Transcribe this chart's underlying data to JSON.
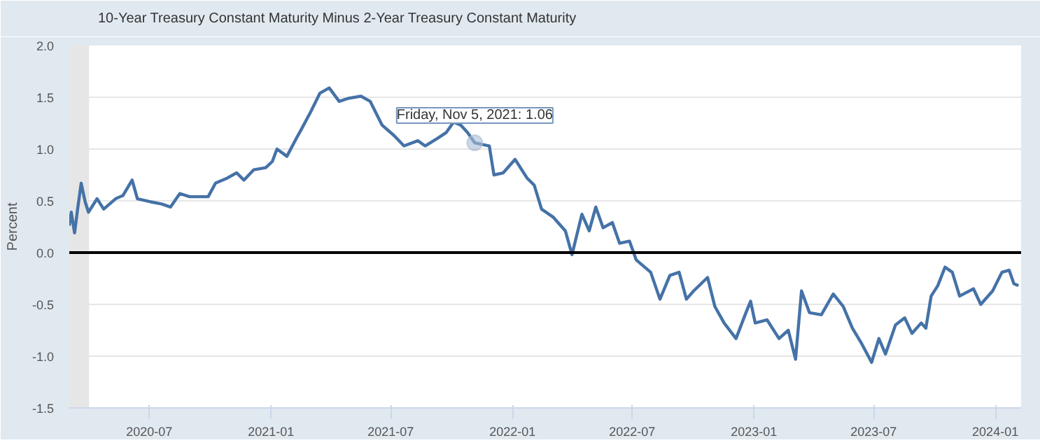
{
  "chart_data": {
    "type": "line",
    "ylabel": "Percent",
    "legend": "top left",
    "grid": "y",
    "line_style": "solid",
    "marker": "none",
    "xlim": [
      "2020-03-02",
      "2024-02-09"
    ],
    "ylim": [
      -1.5,
      2.0
    ],
    "xticks": [
      "2020-07",
      "2021-01",
      "2021-07",
      "2022-01",
      "2022-07",
      "2023-01",
      "2023-07",
      "2024-01"
    ],
    "yticks": [
      {
        "value": -1.5,
        "label": "-1.5"
      },
      {
        "value": -1.0,
        "label": "-1.0"
      },
      {
        "value": -0.5,
        "label": "-0.5"
      },
      {
        "value": 0.0,
        "label": "0.0"
      },
      {
        "value": 0.5,
        "label": "0.5"
      },
      {
        "value": 1.0,
        "label": "1.0"
      },
      {
        "value": 1.5,
        "label": "1.5"
      },
      {
        "value": 2.0,
        "label": "2.0"
      }
    ],
    "ref_lines": [
      {
        "axis": "y",
        "value": 0,
        "color": "#000000"
      }
    ],
    "bands": [
      {
        "axis": "x",
        "from": "2020-03-02",
        "to": "2020-04-01",
        "color": "#e6e6e6"
      }
    ],
    "annotations": [
      {
        "text": "Friday, Nov 5, 2021: 1.06",
        "x": "2021-11-05",
        "y": 1.06
      }
    ],
    "x": [
      "2020-03-02",
      "2020-03-05",
      "2020-03-10",
      "2020-03-15",
      "2020-03-20",
      "2020-03-26",
      "2020-03-31",
      "2020-04-13",
      "2020-04-23",
      "2020-05-11",
      "2020-05-22",
      "2020-06-05",
      "2020-06-13",
      "2020-07-03",
      "2020-07-19",
      "2020-08-02",
      "2020-08-16",
      "2020-08-31",
      "2020-09-28",
      "2020-10-09",
      "2020-10-27",
      "2020-11-10",
      "2020-11-21",
      "2020-12-06",
      "2020-12-24",
      "2021-01-03",
      "2021-01-10",
      "2021-01-25",
      "2021-02-08",
      "2021-02-15",
      "2021-03-02",
      "2021-03-16",
      "2021-03-30",
      "2021-04-14",
      "2021-04-28",
      "2021-05-17",
      "2021-05-31",
      "2021-06-18",
      "2021-07-06",
      "2021-07-21",
      "2021-08-11",
      "2021-08-22",
      "2021-09-09",
      "2021-09-23",
      "2021-10-04",
      "2021-10-15",
      "2021-10-25",
      "2021-11-05",
      "2021-11-27",
      "2021-12-04",
      "2021-12-18",
      "2022-01-05",
      "2022-01-23",
      "2022-02-03",
      "2022-02-14",
      "2022-03-04",
      "2022-03-22",
      "2022-04-01",
      "2022-04-16",
      "2022-04-27",
      "2022-05-07",
      "2022-05-18",
      "2022-06-01",
      "2022-06-12",
      "2022-06-27",
      "2022-07-07",
      "2022-07-29",
      "2022-08-12",
      "2022-08-27",
      "2022-09-10",
      "2022-09-21",
      "2022-10-02",
      "2022-10-23",
      "2022-11-03",
      "2022-11-17",
      "2022-12-05",
      "2022-12-20",
      "2022-12-27",
      "2023-01-03",
      "2023-01-21",
      "2023-02-08",
      "2023-02-22",
      "2023-03-05",
      "2023-03-14",
      "2023-03-26",
      "2023-04-13",
      "2023-05-01",
      "2023-05-16",
      "2023-05-30",
      "2023-06-13",
      "2023-06-28",
      "2023-07-09",
      "2023-07-19",
      "2023-08-03",
      "2023-08-17",
      "2023-08-28",
      "2023-09-11",
      "2023-09-18",
      "2023-09-26",
      "2023-10-06",
      "2023-10-17",
      "2023-10-28",
      "2023-11-08",
      "2023-11-29",
      "2023-12-10",
      "2023-12-28",
      "2024-01-11",
      "2024-01-22",
      "2024-01-29",
      "2024-02-05"
    ],
    "series": [
      {
        "name": "10-Year Treasury Constant Maturity Minus 2-Year Treasury Constant Maturity",
        "color": "#4572a7",
        "values": [
          0.26,
          0.39,
          0.19,
          0.44,
          0.67,
          0.49,
          0.39,
          0.52,
          0.42,
          0.52,
          0.55,
          0.7,
          0.52,
          0.49,
          0.47,
          0.44,
          0.57,
          0.54,
          0.54,
          0.67,
          0.72,
          0.77,
          0.7,
          0.8,
          0.82,
          0.88,
          1.0,
          0.93,
          1.1,
          1.18,
          1.36,
          1.54,
          1.59,
          1.46,
          1.49,
          1.51,
          1.46,
          1.23,
          1.13,
          1.03,
          1.08,
          1.03,
          1.1,
          1.16,
          1.26,
          1.23,
          1.16,
          1.06,
          1.03,
          0.75,
          0.77,
          0.9,
          0.72,
          0.65,
          0.42,
          0.34,
          0.21,
          -0.02,
          0.37,
          0.21,
          0.44,
          0.24,
          0.29,
          0.09,
          0.11,
          -0.07,
          -0.19,
          -0.45,
          -0.22,
          -0.19,
          -0.45,
          -0.37,
          -0.24,
          -0.52,
          -0.68,
          -0.83,
          -0.58,
          -0.47,
          -0.68,
          -0.65,
          -0.83,
          -0.75,
          -1.03,
          -0.37,
          -0.58,
          -0.6,
          -0.4,
          -0.52,
          -0.73,
          -0.88,
          -1.06,
          -0.83,
          -0.98,
          -0.7,
          -0.63,
          -0.78,
          -0.68,
          -0.73,
          -0.42,
          -0.32,
          -0.14,
          -0.19,
          -0.42,
          -0.35,
          -0.5,
          -0.37,
          -0.19,
          -0.17,
          -0.3,
          -0.32
        ]
      }
    ]
  }
}
